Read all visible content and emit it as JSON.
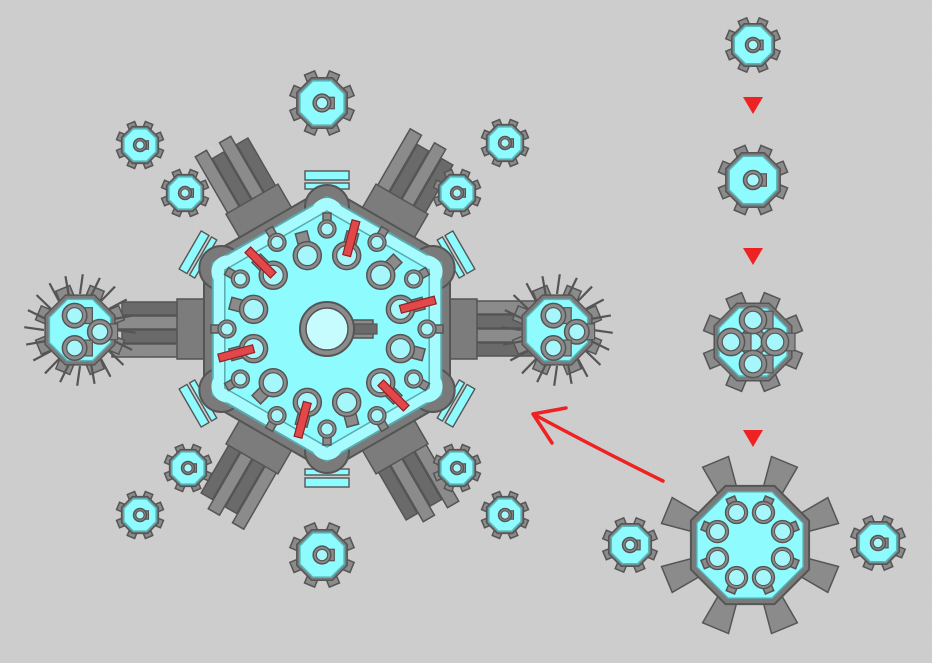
{
  "palette": {
    "background": "#cdcdcd",
    "grid": "#c4c4c4",
    "body_fill": "#8efcff",
    "body_inner": "#a6fbff",
    "body_stroke": "#5f5f5f",
    "barrel_fill": "#8b8b8b",
    "barrel_dark": "#6a6a6a",
    "barrel_stroke": "#555555",
    "turret_fill": "#a6f7fb",
    "laser_fill": "#e2474a",
    "arrow_color": "#ee2222"
  },
  "scene": {
    "boss_icon": "hexagonal-fortress-boss-icon",
    "drone_icon": "octagon-drone-icon",
    "evolution_arrow_icon": "red-down-triangle-icon",
    "merge_arrow_icon": "red-curved-arrow-icon"
  }
}
